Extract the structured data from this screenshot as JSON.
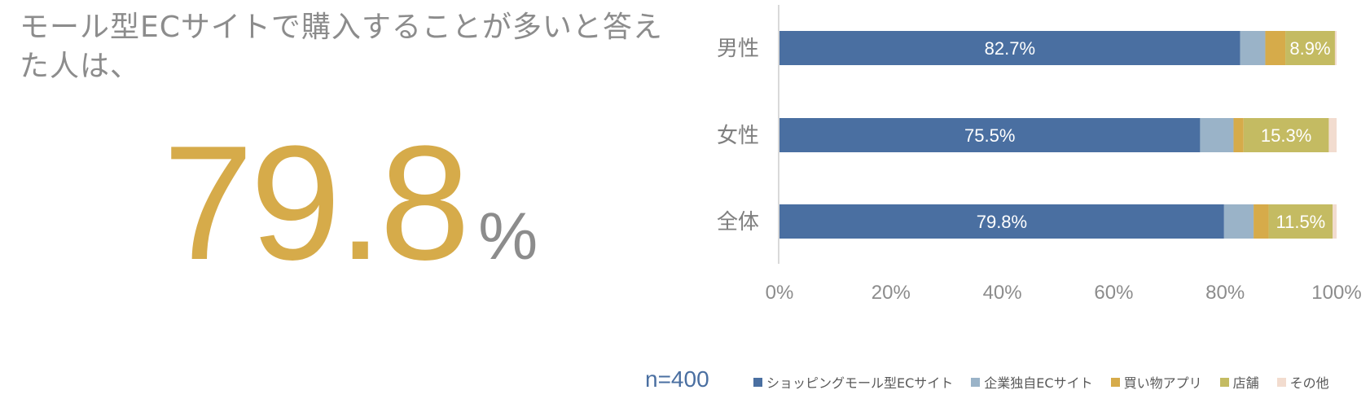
{
  "headline": "モール型ECサイトで購入することが多いと答えた人は、",
  "highlight": {
    "value": "79.8",
    "unit": "%"
  },
  "sample_size": "n=400",
  "chart_data": {
    "type": "bar",
    "orientation": "horizontal",
    "stacked": true,
    "normalized": true,
    "categories": [
      "男性",
      "女性",
      "全体"
    ],
    "series": [
      {
        "name": "ショッピングモール型ECサイト",
        "color": "#4a6fa1",
        "values": [
          82.7,
          75.5,
          79.8
        ],
        "labels": [
          "82.7%",
          "75.5%",
          "79.8%"
        ]
      },
      {
        "name": "企業独自ECサイト",
        "color": "#9ab3c8",
        "values": [
          4.5,
          6.0,
          5.3
        ],
        "labels": [
          "",
          "",
          ""
        ]
      },
      {
        "name": "買い物アプリ",
        "color": "#d6ab4a",
        "values": [
          3.6,
          1.8,
          2.7
        ],
        "labels": [
          "",
          "",
          ""
        ]
      },
      {
        "name": "店舗",
        "color": "#c4bb62",
        "values": [
          8.9,
          15.3,
          11.5
        ],
        "labels": [
          "8.9%",
          "15.3%",
          "11.5%"
        ]
      },
      {
        "name": "その他",
        "color": "#f2dccf",
        "values": [
          0.3,
          1.4,
          0.7
        ],
        "labels": [
          "",
          "",
          ""
        ]
      }
    ],
    "xticks": [
      "0%",
      "20%",
      "40%",
      "60%",
      "80%",
      "100%"
    ],
    "xlim": [
      0,
      100
    ],
    "grid": false,
    "legend_position": "bottom"
  }
}
